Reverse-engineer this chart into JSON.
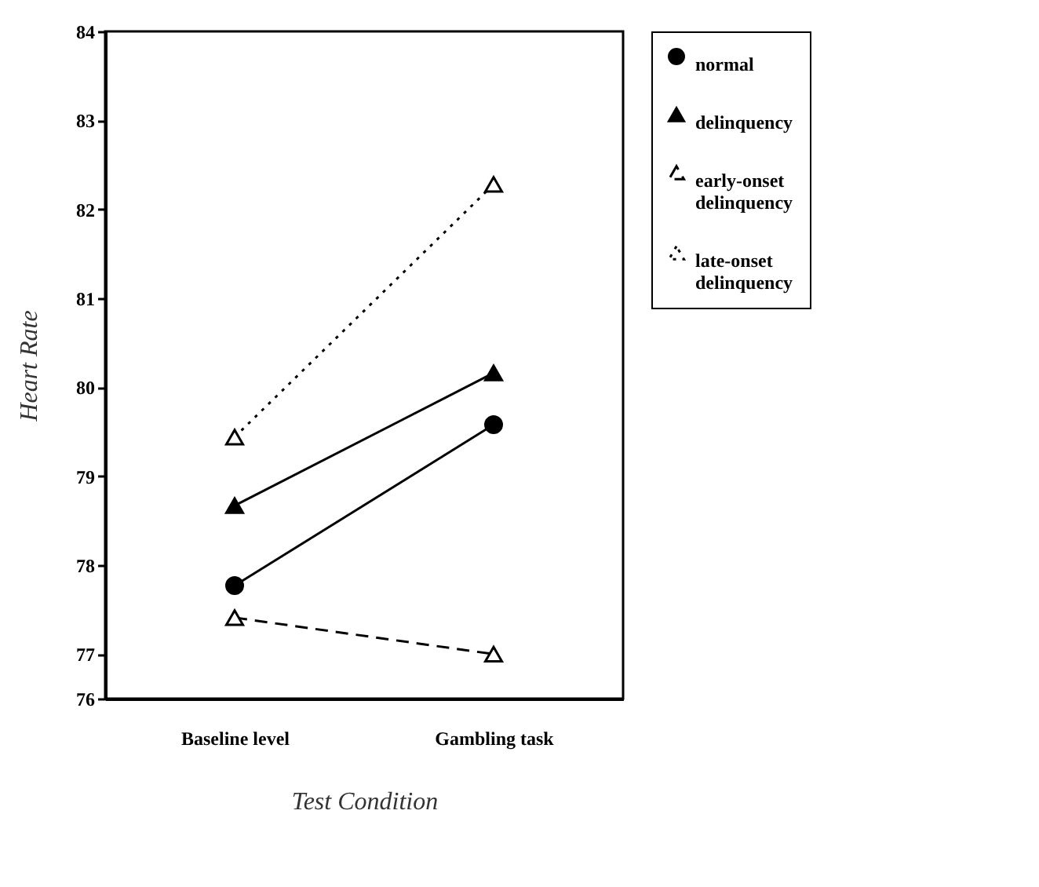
{
  "chart_data": {
    "type": "line",
    "xlabel": "Test Condition",
    "ylabel": "Heart Rate",
    "categories": [
      "Baseline level",
      "Gambling task"
    ],
    "series": [
      {
        "name": "normal",
        "color": "#000000",
        "values": [
          77.77,
          79.58
        ],
        "marker": "circle",
        "line_style": "solid"
      },
      {
        "name": "delinquency",
        "color": "#000000",
        "values": [
          78.67,
          80.16
        ],
        "marker": "triangle",
        "line_style": "solid"
      },
      {
        "name": "early-onset delinquency",
        "color": "#000000",
        "values": [
          77.41,
          77.0
        ],
        "marker": "triangle",
        "line_style": "dashed"
      },
      {
        "name": "late-onset delinquency",
        "color": "#000000",
        "values": [
          79.44,
          82.28
        ],
        "marker": "triangle",
        "line_style": "dotted"
      }
    ],
    "ylim": [
      76.5,
      84
    ],
    "yticks": [
      {
        "value": 76.5,
        "label": "76"
      },
      77,
      78,
      79,
      80,
      81,
      82,
      83,
      84
    ],
    "grid": false,
    "legend": "right"
  }
}
